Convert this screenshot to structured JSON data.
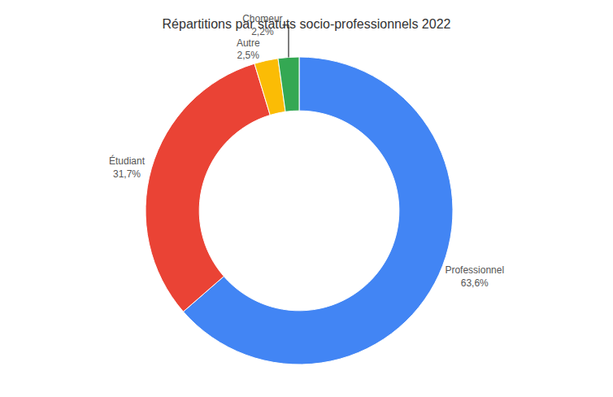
{
  "chart_data": {
    "type": "donut",
    "title": "Répartitions par statuts socio-professionnels 2022",
    "categories": [
      "Professionnel",
      "Étudiant",
      "Autre",
      "Chomeur"
    ],
    "values": [
      63.6,
      31.7,
      2.5,
      2.2
    ],
    "value_labels": [
      "63,6%",
      "31,7%",
      "2,5%",
      "2,2%"
    ],
    "colors": [
      "#4285F4",
      "#EA4335",
      "#FBBC05",
      "#34A853"
    ],
    "data_labels": true
  }
}
